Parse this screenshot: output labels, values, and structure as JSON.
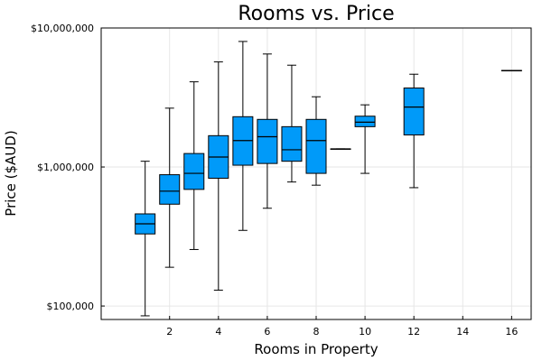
{
  "chart_data": {
    "type": "box",
    "title": "Rooms vs. Price",
    "xlabel": "Rooms in Property",
    "ylabel": "Price ($AUD)",
    "y_scale": "log10",
    "ylim": [
      80000,
      10000000
    ],
    "xlim": [
      -0.8,
      16.8
    ],
    "x_ticks": [
      2,
      4,
      6,
      8,
      10,
      12,
      14,
      16
    ],
    "y_ticks": [
      {
        "value": 100000,
        "label": "$100,000"
      },
      {
        "value": 1000000,
        "label": "$1,000,000"
      },
      {
        "value": 10000000,
        "label": "$10,000,000"
      }
    ],
    "grid": true,
    "legend": "none",
    "box_color": "#009af9",
    "series": [
      {
        "x": 1,
        "min": 85000,
        "q1": 330000,
        "median": 390000,
        "q3": 460000,
        "max": 1100000
      },
      {
        "x": 2,
        "min": 190000,
        "q1": 540000,
        "median": 670000,
        "q3": 880000,
        "max": 2650000
      },
      {
        "x": 3,
        "min": 255000,
        "q1": 690000,
        "median": 900000,
        "q3": 1250000,
        "max": 4100000
      },
      {
        "x": 4,
        "min": 130000,
        "q1": 830000,
        "median": 1180000,
        "q3": 1680000,
        "max": 5700000
      },
      {
        "x": 5,
        "min": 350000,
        "q1": 1030000,
        "median": 1550000,
        "q3": 2300000,
        "max": 8000000
      },
      {
        "x": 6,
        "min": 505000,
        "q1": 1060000,
        "median": 1650000,
        "q3": 2200000,
        "max": 6500000
      },
      {
        "x": 7,
        "min": 780000,
        "q1": 1100000,
        "median": 1330000,
        "q3": 1950000,
        "max": 5400000
      },
      {
        "x": 8,
        "min": 740000,
        "q1": 900000,
        "median": 1550000,
        "q3": 2200000,
        "max": 3200000
      },
      {
        "x": 9,
        "min": 1350000,
        "q1": 1350000,
        "median": 1350000,
        "q3": 1350000,
        "max": 1350000
      },
      {
        "x": 10,
        "min": 900000,
        "q1": 1950000,
        "median": 2100000,
        "q3": 2320000,
        "max": 2800000
      },
      {
        "x": 12,
        "min": 710000,
        "q1": 1700000,
        "median": 2700000,
        "q3": 3700000,
        "max": 4650000
      },
      {
        "x": 16,
        "min": 4950000,
        "q1": 4950000,
        "median": 4950000,
        "q3": 4950000,
        "max": 4950000
      }
    ]
  }
}
